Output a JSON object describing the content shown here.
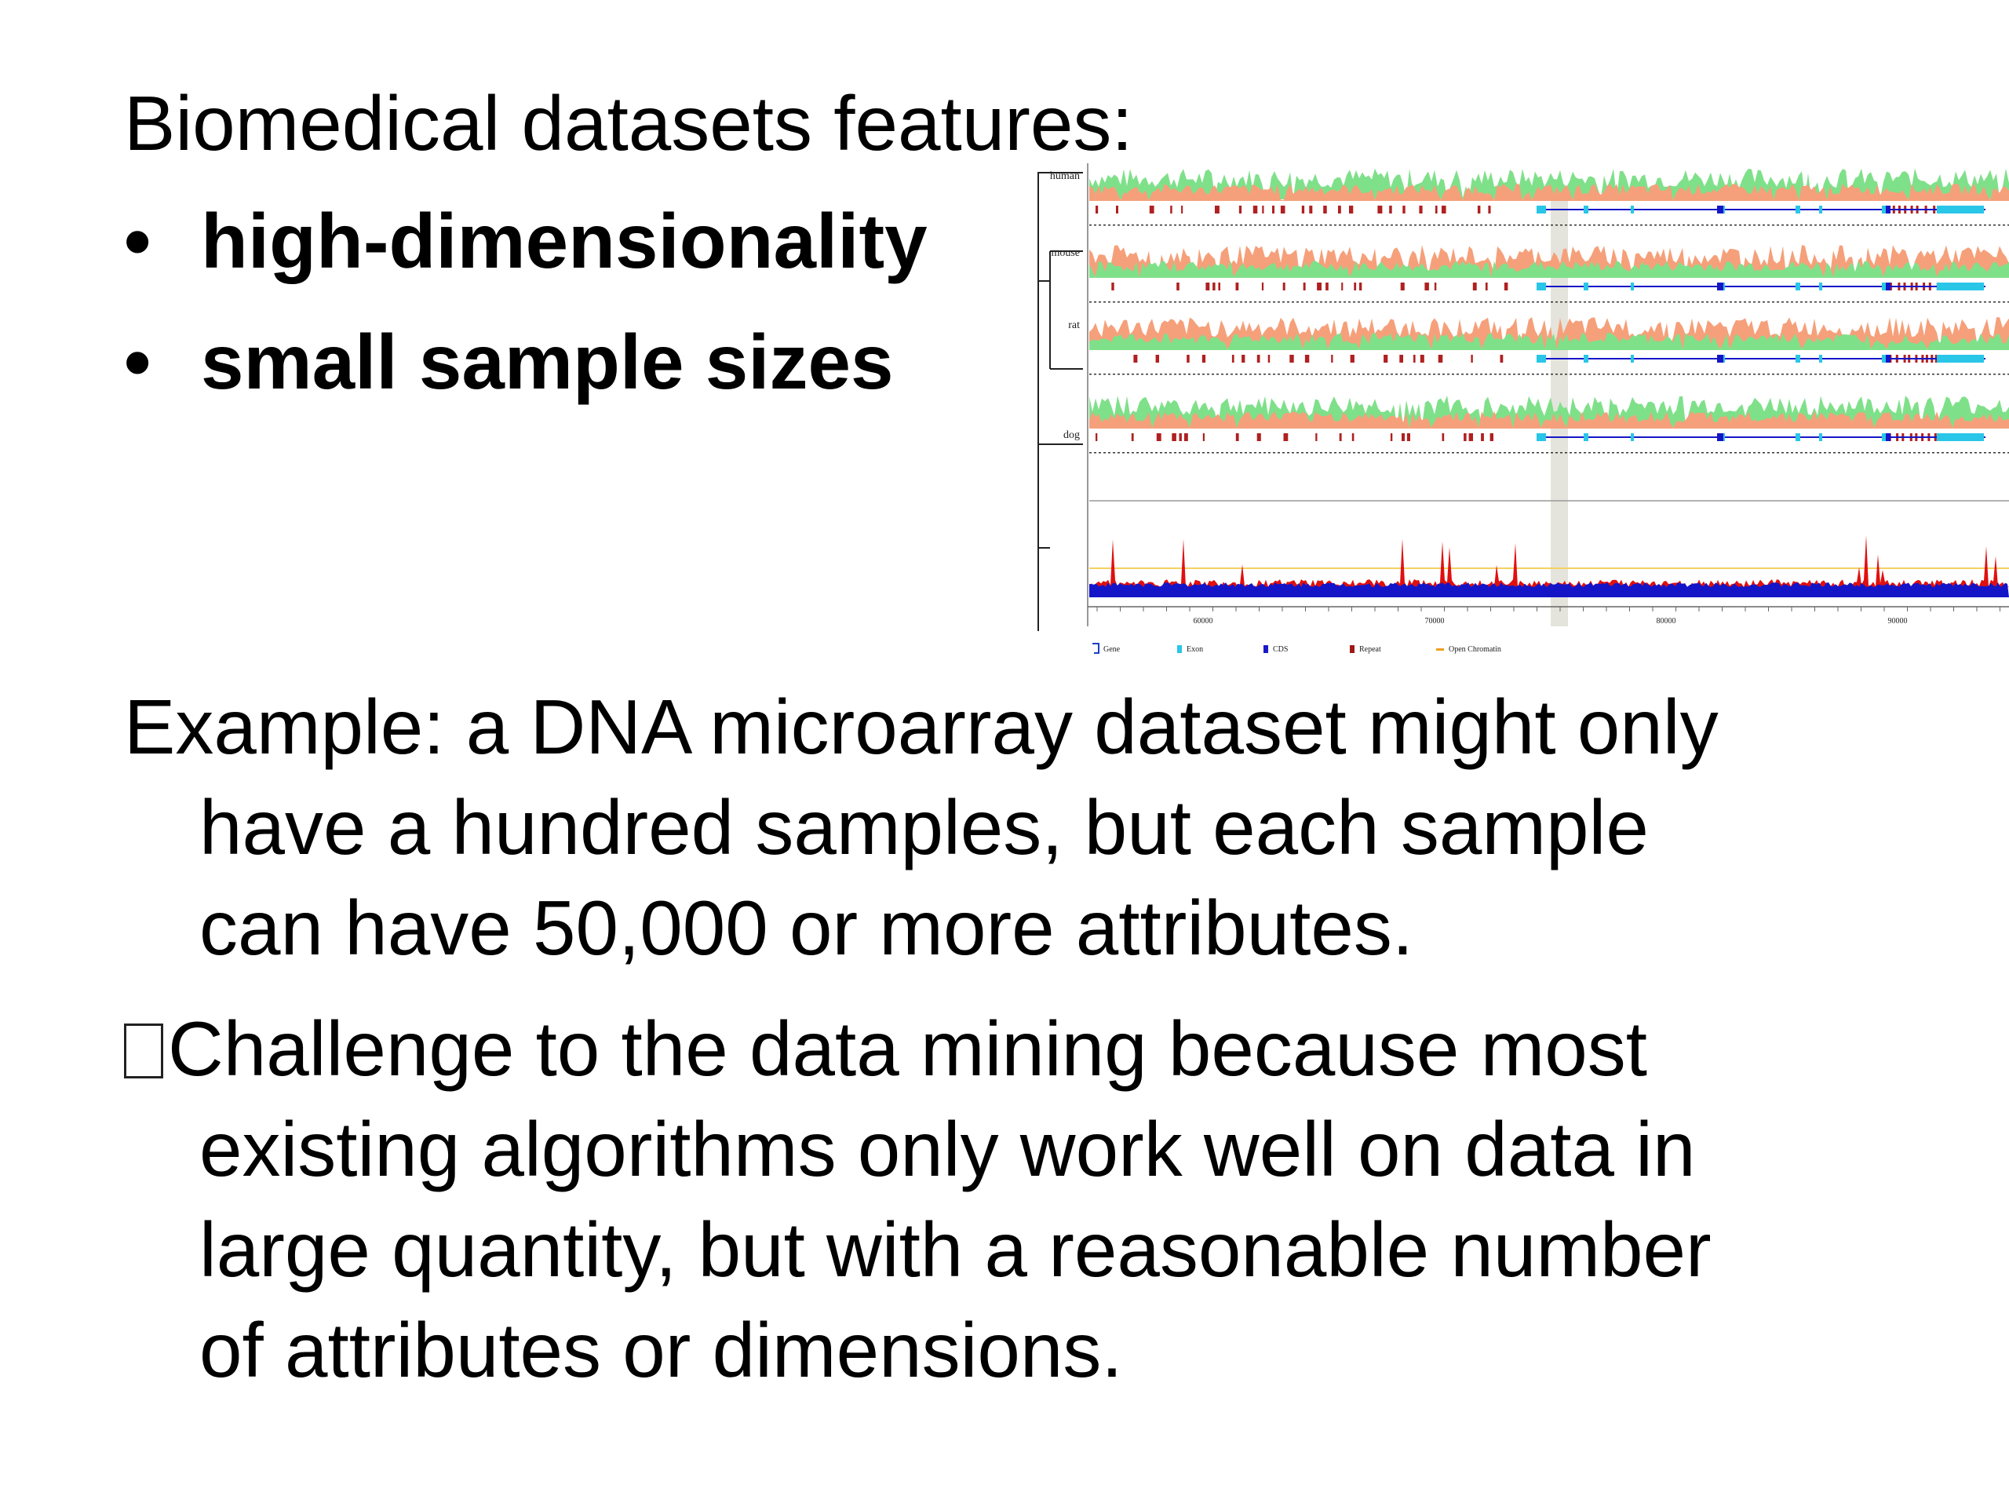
{
  "slide": {
    "heading": "Biomedical datasets features:",
    "bullets": [
      {
        "marker": "•",
        "text": "high-dimensionality"
      },
      {
        "marker": "•",
        "text": "small sample sizes"
      }
    ],
    "example_lines": [
      "Example: a DNA microarray dataset might only",
      "have a hundred samples, but each sample",
      "can have 50,000 or more attributes."
    ],
    "challenge_lines": [
      "Challenge to the data mining because most",
      "existing algorithms only work well on data in",
      "large quantity, but with a reasonable number",
      "of attributes or dimensions."
    ]
  },
  "figure": {
    "species_labels": [
      "human",
      "mouse",
      "rat",
      "dog"
    ],
    "axis_ticks": [
      "60000",
      "70000",
      "80000",
      "90000"
    ],
    "legend": [
      {
        "label": "Gene",
        "color": "#1a3fc8"
      },
      {
        "label": "Exon",
        "color": "#29c6e8"
      },
      {
        "label": "CDS",
        "color": "#1a1ac8"
      },
      {
        "label": "Repeat",
        "color": "#a01818"
      },
      {
        "label": "Open Chromatin",
        "color": "#f0a020"
      }
    ],
    "colors": {
      "conservation_green": "#7fe08a",
      "conservation_salmon": "#f5a07a",
      "repeat_red": "#b02020",
      "peak_red": "#e01010",
      "baseline_blue": "#1515c8",
      "exon_cyan": "#29c6e8"
    }
  }
}
